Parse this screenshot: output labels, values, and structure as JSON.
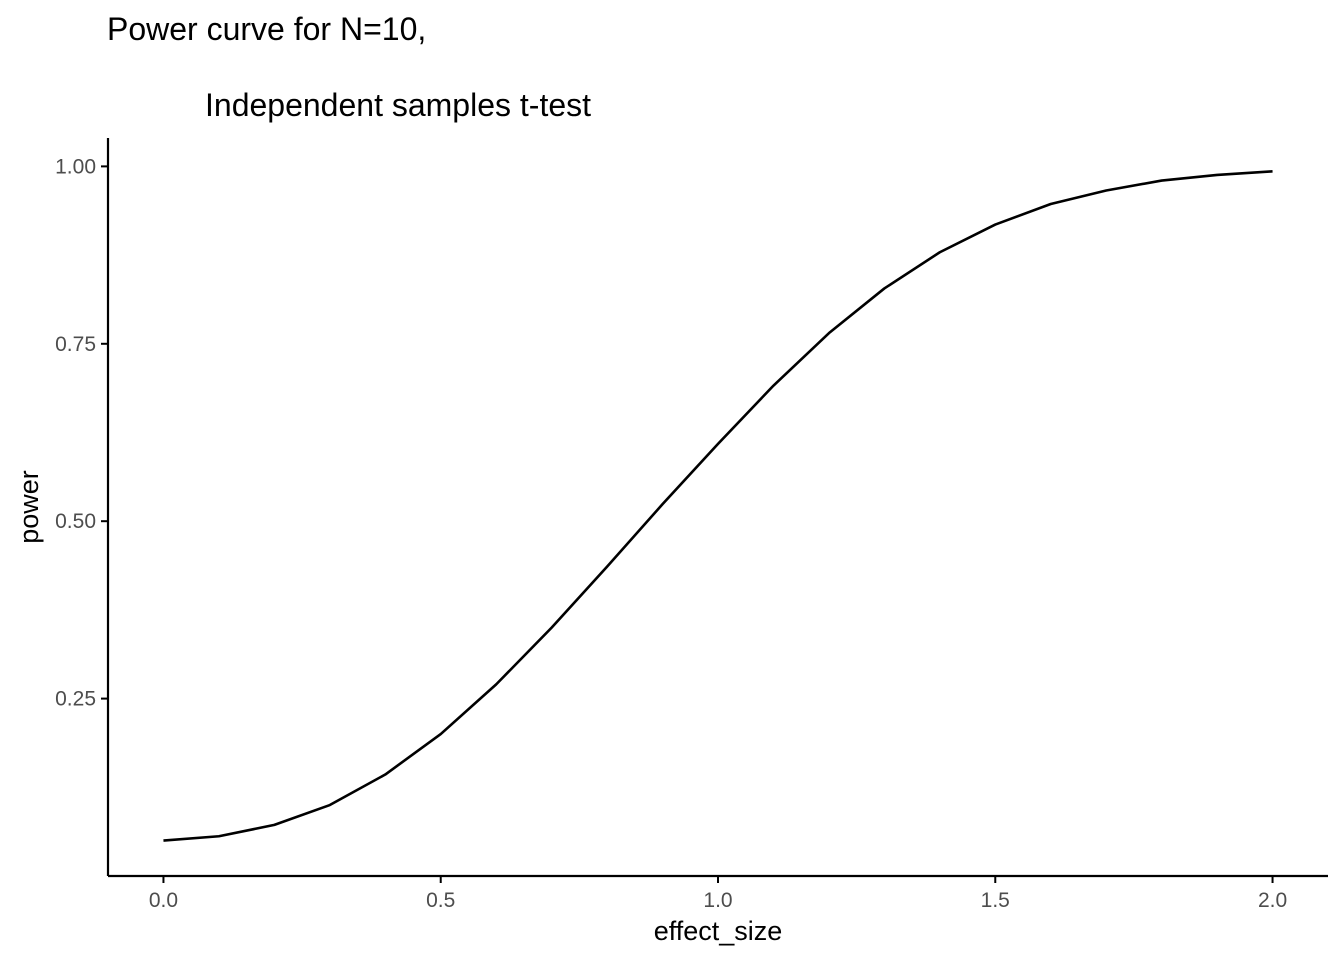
{
  "chart_data": {
    "type": "line",
    "title": "Power curve for N=10,",
    "subtitle": "Independent samples t-test",
    "xlabel": "effect_size",
    "ylabel": "power",
    "xlim": [
      -0.1,
      2.1
    ],
    "ylim": [
      0.0,
      1.04
    ],
    "grid": false,
    "legend": "none",
    "line_color": "#000000",
    "axis_color": "#000000",
    "tick_label_color": "#4d4d4d",
    "x_ticks": [
      {
        "value": 0.0,
        "label": "0.0"
      },
      {
        "value": 0.5,
        "label": "0.5"
      },
      {
        "value": 1.0,
        "label": "1.0"
      },
      {
        "value": 1.5,
        "label": "1.5"
      },
      {
        "value": 2.0,
        "label": "2.0"
      }
    ],
    "y_ticks": [
      {
        "value": 0.25,
        "label": "0.25"
      },
      {
        "value": 0.5,
        "label": "0.50"
      },
      {
        "value": 0.75,
        "label": "0.75"
      },
      {
        "value": 1.0,
        "label": "1.00"
      }
    ],
    "series": [
      {
        "x": [
          0.0,
          0.1,
          0.2,
          0.3,
          0.4,
          0.5,
          0.6,
          0.7,
          0.8,
          0.9,
          1.0,
          1.1,
          1.2,
          1.3,
          1.4,
          1.5,
          1.6,
          1.7,
          1.8,
          1.9,
          2.0
        ],
        "values": [
          0.05,
          0.056,
          0.072,
          0.1,
          0.143,
          0.2,
          0.27,
          0.35,
          0.436,
          0.524,
          0.609,
          0.691,
          0.765,
          0.828,
          0.879,
          0.918,
          0.947,
          0.966,
          0.98,
          0.988,
          0.993
        ]
      }
    ]
  }
}
